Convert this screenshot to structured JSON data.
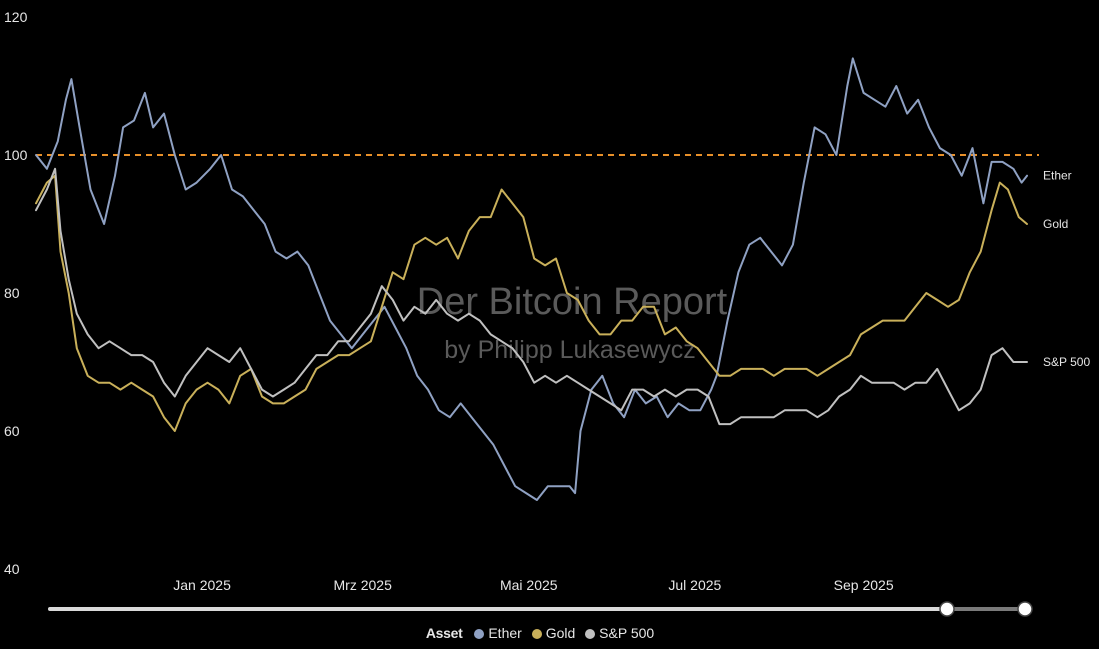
{
  "chart_data": {
    "type": "line",
    "title": "",
    "xlabel": "",
    "ylabel": "",
    "ylim": [
      40,
      120
    ],
    "yticks": [
      "40",
      "60",
      "80",
      "100",
      "120"
    ],
    "xticks": [
      "Jan 2025",
      "Mrz 2025",
      "Mai 2025",
      "Jul 2025",
      "Sep 2025"
    ],
    "x_range": [
      "2024-11-01",
      "2025-10-31"
    ],
    "reference_line": {
      "value": 100,
      "color": "#e8902a",
      "style": "dashed"
    },
    "series": [
      {
        "name": "Ether",
        "color": "#8fa1c3",
        "points": [
          [
            "2024-11-01",
            100
          ],
          [
            "2024-11-05",
            98
          ],
          [
            "2024-11-09",
            102
          ],
          [
            "2024-11-12",
            108
          ],
          [
            "2024-11-14",
            111
          ],
          [
            "2024-11-17",
            104
          ],
          [
            "2024-11-21",
            95
          ],
          [
            "2024-11-26",
            90
          ],
          [
            "2024-11-30",
            97
          ],
          [
            "2024-12-03",
            104
          ],
          [
            "2024-12-07",
            105
          ],
          [
            "2024-12-11",
            109
          ],
          [
            "2024-12-14",
            104
          ],
          [
            "2024-12-18",
            106
          ],
          [
            "2024-12-22",
            100
          ],
          [
            "2024-12-26",
            95
          ],
          [
            "2024-12-30",
            96
          ],
          [
            "2025-01-04",
            98
          ],
          [
            "2025-01-08",
            100
          ],
          [
            "2025-01-12",
            95
          ],
          [
            "2025-01-16",
            94
          ],
          [
            "2025-01-20",
            92
          ],
          [
            "2025-01-24",
            90
          ],
          [
            "2025-01-28",
            86
          ],
          [
            "2025-02-01",
            85
          ],
          [
            "2025-02-05",
            86
          ],
          [
            "2025-02-09",
            84
          ],
          [
            "2025-02-13",
            80
          ],
          [
            "2025-02-17",
            76
          ],
          [
            "2025-02-21",
            74
          ],
          [
            "2025-02-25",
            72
          ],
          [
            "2025-03-01",
            74
          ],
          [
            "2025-03-05",
            76
          ],
          [
            "2025-03-09",
            78
          ],
          [
            "2025-03-13",
            75
          ],
          [
            "2025-03-17",
            72
          ],
          [
            "2025-03-21",
            68
          ],
          [
            "2025-03-25",
            66
          ],
          [
            "2025-03-29",
            63
          ],
          [
            "2025-04-02",
            62
          ],
          [
            "2025-04-06",
            64
          ],
          [
            "2025-04-10",
            62
          ],
          [
            "2025-04-14",
            60
          ],
          [
            "2025-04-18",
            58
          ],
          [
            "2025-04-22",
            55
          ],
          [
            "2025-04-26",
            52
          ],
          [
            "2025-04-30",
            51
          ],
          [
            "2025-05-04",
            50
          ],
          [
            "2025-05-08",
            52
          ],
          [
            "2025-05-12",
            52
          ],
          [
            "2025-05-16",
            52
          ],
          [
            "2025-05-18",
            51
          ],
          [
            "2025-05-20",
            60
          ],
          [
            "2025-05-24",
            66
          ],
          [
            "2025-05-28",
            68
          ],
          [
            "2025-06-01",
            64
          ],
          [
            "2025-06-05",
            62
          ],
          [
            "2025-06-09",
            66
          ],
          [
            "2025-06-13",
            64
          ],
          [
            "2025-06-17",
            65
          ],
          [
            "2025-06-21",
            62
          ],
          [
            "2025-06-25",
            64
          ],
          [
            "2025-06-29",
            63
          ],
          [
            "2025-07-03",
            63
          ],
          [
            "2025-07-07",
            66
          ],
          [
            "2025-07-09",
            68
          ],
          [
            "2025-07-13",
            76
          ],
          [
            "2025-07-17",
            83
          ],
          [
            "2025-07-21",
            87
          ],
          [
            "2025-07-25",
            88
          ],
          [
            "2025-07-29",
            86
          ],
          [
            "2025-08-02",
            84
          ],
          [
            "2025-08-06",
            87
          ],
          [
            "2025-08-10",
            96
          ],
          [
            "2025-08-14",
            104
          ],
          [
            "2025-08-18",
            103
          ],
          [
            "2025-08-22",
            100
          ],
          [
            "2025-08-26",
            110
          ],
          [
            "2025-08-28",
            114
          ],
          [
            "2025-09-01",
            109
          ],
          [
            "2025-09-05",
            108
          ],
          [
            "2025-09-09",
            107
          ],
          [
            "2025-09-13",
            110
          ],
          [
            "2025-09-17",
            106
          ],
          [
            "2025-09-21",
            108
          ],
          [
            "2025-09-25",
            104
          ],
          [
            "2025-09-29",
            101
          ],
          [
            "2025-10-03",
            100
          ],
          [
            "2025-10-07",
            97
          ],
          [
            "2025-10-11",
            101
          ],
          [
            "2025-10-15",
            93
          ],
          [
            "2025-10-18",
            99
          ],
          [
            "2025-10-22",
            99
          ],
          [
            "2025-10-26",
            98
          ],
          [
            "2025-10-29",
            96
          ],
          [
            "2025-10-31",
            97
          ]
        ]
      },
      {
        "name": "Gold",
        "color": "#c9b05a",
        "points": [
          [
            "2024-11-01",
            93
          ],
          [
            "2024-11-05",
            96
          ],
          [
            "2024-11-08",
            97
          ],
          [
            "2024-11-10",
            86
          ],
          [
            "2024-11-13",
            80
          ],
          [
            "2024-11-16",
            72
          ],
          [
            "2024-11-20",
            68
          ],
          [
            "2024-11-24",
            67
          ],
          [
            "2024-11-28",
            67
          ],
          [
            "2024-12-02",
            66
          ],
          [
            "2024-12-06",
            67
          ],
          [
            "2024-12-10",
            66
          ],
          [
            "2024-12-14",
            65
          ],
          [
            "2024-12-18",
            62
          ],
          [
            "2024-12-22",
            60
          ],
          [
            "2024-12-26",
            64
          ],
          [
            "2024-12-30",
            66
          ],
          [
            "2025-01-03",
            67
          ],
          [
            "2025-01-07",
            66
          ],
          [
            "2025-01-11",
            64
          ],
          [
            "2025-01-15",
            68
          ],
          [
            "2025-01-19",
            69
          ],
          [
            "2025-01-23",
            65
          ],
          [
            "2025-01-27",
            64
          ],
          [
            "2025-01-31",
            64
          ],
          [
            "2025-02-04",
            65
          ],
          [
            "2025-02-08",
            66
          ],
          [
            "2025-02-12",
            69
          ],
          [
            "2025-02-16",
            70
          ],
          [
            "2025-02-20",
            71
          ],
          [
            "2025-02-24",
            71
          ],
          [
            "2025-02-28",
            72
          ],
          [
            "2025-03-04",
            73
          ],
          [
            "2025-03-08",
            78
          ],
          [
            "2025-03-12",
            83
          ],
          [
            "2025-03-16",
            82
          ],
          [
            "2025-03-20",
            87
          ],
          [
            "2025-03-24",
            88
          ],
          [
            "2025-03-28",
            87
          ],
          [
            "2025-04-01",
            88
          ],
          [
            "2025-04-05",
            85
          ],
          [
            "2025-04-09",
            89
          ],
          [
            "2025-04-13",
            91
          ],
          [
            "2025-04-17",
            91
          ],
          [
            "2025-04-21",
            95
          ],
          [
            "2025-04-25",
            93
          ],
          [
            "2025-04-29",
            91
          ],
          [
            "2025-05-03",
            85
          ],
          [
            "2025-05-07",
            84
          ],
          [
            "2025-05-11",
            85
          ],
          [
            "2025-05-15",
            80
          ],
          [
            "2025-05-19",
            79
          ],
          [
            "2025-05-23",
            76
          ],
          [
            "2025-05-27",
            74
          ],
          [
            "2025-05-31",
            74
          ],
          [
            "2025-06-04",
            76
          ],
          [
            "2025-06-08",
            76
          ],
          [
            "2025-06-12",
            78
          ],
          [
            "2025-06-16",
            78
          ],
          [
            "2025-06-20",
            74
          ],
          [
            "2025-06-24",
            75
          ],
          [
            "2025-06-28",
            73
          ],
          [
            "2025-07-02",
            72
          ],
          [
            "2025-07-06",
            70
          ],
          [
            "2025-07-10",
            68
          ],
          [
            "2025-07-14",
            68
          ],
          [
            "2025-07-18",
            69
          ],
          [
            "2025-07-22",
            69
          ],
          [
            "2025-07-26",
            69
          ],
          [
            "2025-07-30",
            68
          ],
          [
            "2025-08-03",
            69
          ],
          [
            "2025-08-07",
            69
          ],
          [
            "2025-08-11",
            69
          ],
          [
            "2025-08-15",
            68
          ],
          [
            "2025-08-19",
            69
          ],
          [
            "2025-08-23",
            70
          ],
          [
            "2025-08-27",
            71
          ],
          [
            "2025-08-31",
            74
          ],
          [
            "2025-09-04",
            75
          ],
          [
            "2025-09-08",
            76
          ],
          [
            "2025-09-12",
            76
          ],
          [
            "2025-09-16",
            76
          ],
          [
            "2025-09-20",
            78
          ],
          [
            "2025-09-24",
            80
          ],
          [
            "2025-09-28",
            79
          ],
          [
            "2025-10-02",
            78
          ],
          [
            "2025-10-06",
            79
          ],
          [
            "2025-10-10",
            83
          ],
          [
            "2025-10-14",
            86
          ],
          [
            "2025-10-18",
            92
          ],
          [
            "2025-10-21",
            96
          ],
          [
            "2025-10-24",
            95
          ],
          [
            "2025-10-28",
            91
          ],
          [
            "2025-10-31",
            90
          ]
        ]
      },
      {
        "name": "S&P 500",
        "color": "#c0c0c0",
        "points": [
          [
            "2024-11-01",
            92
          ],
          [
            "2024-11-05",
            95
          ],
          [
            "2024-11-08",
            98
          ],
          [
            "2024-11-10",
            89
          ],
          [
            "2024-11-13",
            82
          ],
          [
            "2024-11-16",
            77
          ],
          [
            "2024-11-20",
            74
          ],
          [
            "2024-11-24",
            72
          ],
          [
            "2024-11-28",
            73
          ],
          [
            "2024-12-02",
            72
          ],
          [
            "2024-12-06",
            71
          ],
          [
            "2024-12-10",
            71
          ],
          [
            "2024-12-14",
            70
          ],
          [
            "2024-12-18",
            67
          ],
          [
            "2024-12-22",
            65
          ],
          [
            "2024-12-26",
            68
          ],
          [
            "2024-12-30",
            70
          ],
          [
            "2025-01-03",
            72
          ],
          [
            "2025-01-07",
            71
          ],
          [
            "2025-01-11",
            70
          ],
          [
            "2025-01-15",
            72
          ],
          [
            "2025-01-19",
            69
          ],
          [
            "2025-01-23",
            66
          ],
          [
            "2025-01-27",
            65
          ],
          [
            "2025-01-31",
            66
          ],
          [
            "2025-02-04",
            67
          ],
          [
            "2025-02-08",
            69
          ],
          [
            "2025-02-12",
            71
          ],
          [
            "2025-02-16",
            71
          ],
          [
            "2025-02-20",
            73
          ],
          [
            "2025-02-24",
            73
          ],
          [
            "2025-02-28",
            75
          ],
          [
            "2025-03-04",
            77
          ],
          [
            "2025-03-08",
            81
          ],
          [
            "2025-03-12",
            79
          ],
          [
            "2025-03-16",
            76
          ],
          [
            "2025-03-20",
            78
          ],
          [
            "2025-03-24",
            77
          ],
          [
            "2025-03-28",
            79
          ],
          [
            "2025-04-01",
            77
          ],
          [
            "2025-04-05",
            76
          ],
          [
            "2025-04-09",
            77
          ],
          [
            "2025-04-13",
            76
          ],
          [
            "2025-04-17",
            74
          ],
          [
            "2025-04-21",
            73
          ],
          [
            "2025-04-25",
            72
          ],
          [
            "2025-04-29",
            70
          ],
          [
            "2025-05-03",
            67
          ],
          [
            "2025-05-07",
            68
          ],
          [
            "2025-05-11",
            67
          ],
          [
            "2025-05-15",
            68
          ],
          [
            "2025-05-19",
            67
          ],
          [
            "2025-05-23",
            66
          ],
          [
            "2025-05-27",
            65
          ],
          [
            "2025-05-31",
            64
          ],
          [
            "2025-06-04",
            63
          ],
          [
            "2025-06-08",
            66
          ],
          [
            "2025-06-12",
            66
          ],
          [
            "2025-06-16",
            65
          ],
          [
            "2025-06-20",
            66
          ],
          [
            "2025-06-24",
            65
          ],
          [
            "2025-06-28",
            66
          ],
          [
            "2025-07-02",
            66
          ],
          [
            "2025-07-06",
            65
          ],
          [
            "2025-07-10",
            61
          ],
          [
            "2025-07-14",
            61
          ],
          [
            "2025-07-18",
            62
          ],
          [
            "2025-07-22",
            62
          ],
          [
            "2025-07-26",
            62
          ],
          [
            "2025-07-30",
            62
          ],
          [
            "2025-08-03",
            63
          ],
          [
            "2025-08-07",
            63
          ],
          [
            "2025-08-11",
            63
          ],
          [
            "2025-08-15",
            62
          ],
          [
            "2025-08-19",
            63
          ],
          [
            "2025-08-23",
            65
          ],
          [
            "2025-08-27",
            66
          ],
          [
            "2025-08-31",
            68
          ],
          [
            "2025-09-04",
            67
          ],
          [
            "2025-09-08",
            67
          ],
          [
            "2025-09-12",
            67
          ],
          [
            "2025-09-16",
            66
          ],
          [
            "2025-09-20",
            67
          ],
          [
            "2025-09-24",
            67
          ],
          [
            "2025-09-28",
            69
          ],
          [
            "2025-10-02",
            66
          ],
          [
            "2025-10-06",
            63
          ],
          [
            "2025-10-10",
            64
          ],
          [
            "2025-10-14",
            66
          ],
          [
            "2025-10-18",
            71
          ],
          [
            "2025-10-22",
            72
          ],
          [
            "2025-10-26",
            70
          ],
          [
            "2025-10-31",
            70
          ]
        ]
      }
    ],
    "range_slider": {
      "start_fraction": 0.92,
      "end_fraction": 1.0
    },
    "legend": {
      "title": "Asset",
      "position": "bottom-center"
    }
  },
  "watermark": {
    "line1": "Der Bitcoin Report",
    "line2": "by Philipp Lukasewycz"
  }
}
